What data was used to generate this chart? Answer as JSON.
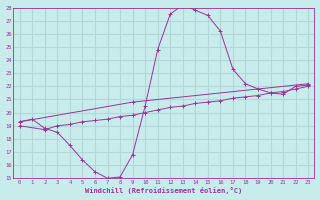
{
  "xlabel": "Windchill (Refroidissement éolien,°C)",
  "background_color": "#c8ecec",
  "grid_color": "#b0d8d8",
  "line_color": "#993399",
  "xlim": [
    -0.5,
    23.5
  ],
  "ylim": [
    15,
    28
  ],
  "xticks": [
    0,
    1,
    2,
    3,
    4,
    5,
    6,
    7,
    8,
    9,
    10,
    11,
    12,
    13,
    14,
    15,
    16,
    17,
    18,
    19,
    20,
    21,
    22,
    23
  ],
  "yticks": [
    15,
    16,
    17,
    18,
    19,
    20,
    21,
    22,
    23,
    24,
    25,
    26,
    27,
    28
  ],
  "line1_x": [
    0,
    1,
    2,
    3,
    4,
    5,
    6,
    7,
    8,
    9,
    10,
    11,
    12,
    13,
    14,
    15,
    16,
    17,
    18,
    19,
    20,
    21,
    22,
    23
  ],
  "line1_y": [
    19.3,
    19.5,
    18.8,
    18.5,
    17.5,
    16.4,
    15.5,
    15.0,
    15.1,
    16.8,
    20.5,
    24.8,
    27.5,
    28.2,
    27.8,
    27.4,
    26.2,
    23.3,
    22.2,
    21.8,
    21.5,
    21.4,
    22.0,
    22.1
  ],
  "line2_x": [
    0,
    9,
    23
  ],
  "line2_y": [
    19.3,
    20.8,
    22.2
  ],
  "line3_x": [
    0,
    2,
    3,
    4,
    5,
    6,
    7,
    8,
    9,
    10,
    11,
    12,
    13,
    14,
    15,
    16,
    17,
    18,
    19,
    20,
    21,
    22,
    23
  ],
  "line3_y": [
    19.0,
    18.7,
    19.0,
    19.1,
    19.3,
    19.4,
    19.5,
    19.7,
    19.8,
    20.0,
    20.2,
    20.4,
    20.5,
    20.7,
    20.8,
    20.9,
    21.1,
    21.2,
    21.3,
    21.5,
    21.6,
    21.8,
    22.0
  ]
}
